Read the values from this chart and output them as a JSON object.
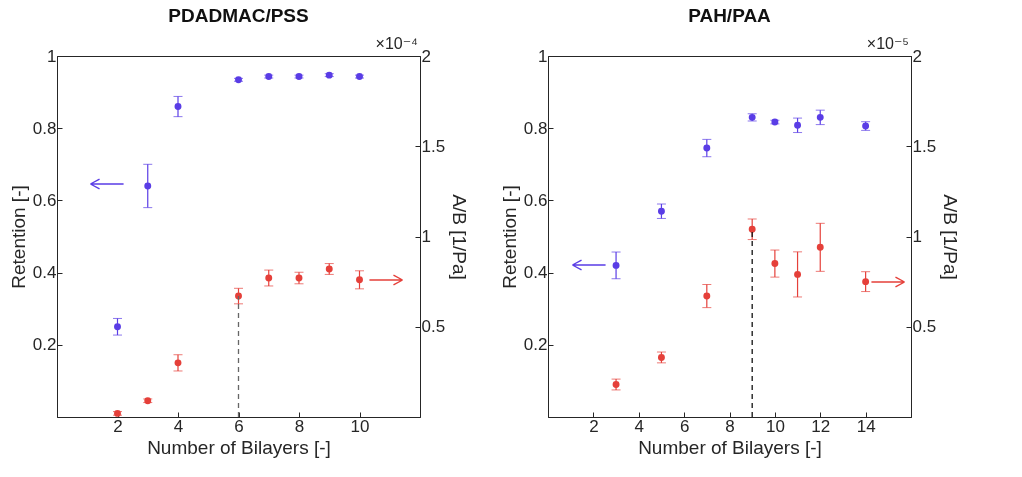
{
  "chart_data": [
    {
      "type": "scatter",
      "title": "PDADMAC/PSS",
      "xlabel": "Number of Bilayers [-]",
      "ylabel": "Retention [-]",
      "y2label": "A/B [1/Pa]",
      "marker": "circle",
      "xlim": [
        0,
        12
      ],
      "xticks": [
        2,
        4,
        6,
        8,
        10
      ],
      "ylim": [
        0,
        1
      ],
      "yticks": [
        0.2,
        0.4,
        0.6,
        0.8,
        1
      ],
      "y2lim": [
        0,
        2
      ],
      "y2ticks": [
        0.5,
        1,
        1.5,
        2
      ],
      "annotations": [
        "×10⁻⁴"
      ],
      "series": [
        {
          "color": "#5a3de6",
          "x": [
            2,
            3,
            4,
            6,
            7,
            8,
            9,
            10
          ],
          "values": [
            0.25,
            0.64,
            0.86,
            0.934,
            0.943,
            0.943,
            0.947,
            0.943
          ],
          "errors": [
            0.023,
            0.06,
            0.028,
            0.004,
            0.004,
            0.004,
            0.004,
            0.004
          ]
        },
        {
          "color": "#e5403a",
          "axis": "y2",
          "x": [
            2,
            3,
            4,
            6,
            7,
            8,
            9,
            10
          ],
          "values": [
            0.02,
            0.09,
            0.3,
            0.67,
            0.77,
            0.77,
            0.82,
            0.76
          ],
          "errors": [
            0.01,
            0.01,
            0.045,
            0.043,
            0.044,
            0.032,
            0.03,
            0.05
          ]
        },
        {
          "type": "line",
          "color": "#666666",
          "line_style": "dashed",
          "marker": "none",
          "axis": "y2",
          "x": [
            6,
            6
          ],
          "values": [
            0,
            0.67
          ]
        }
      ]
    },
    {
      "type": "scatter",
      "title": "PAH/PAA",
      "xlabel": "Number of Bilayers [-]",
      "ylabel": "Retention [-]",
      "y2label": "A/B [1/Pa]",
      "marker": "circle",
      "xlim": [
        0,
        16
      ],
      "xticks": [
        2,
        4,
        6,
        8,
        10,
        12,
        14
      ],
      "ylim": [
        0,
        1
      ],
      "yticks": [
        0.2,
        0.4,
        0.6,
        0.8,
        1
      ],
      "y2lim": [
        0,
        2
      ],
      "y2ticks": [
        0.5,
        1,
        1.5,
        2
      ],
      "annotations": [
        "×10⁻⁵"
      ],
      "series": [
        {
          "color": "#5a3de6",
          "x": [
            3,
            5,
            7,
            9,
            10,
            11,
            12,
            14
          ],
          "values": [
            0.42,
            0.57,
            0.745,
            0.83,
            0.817,
            0.808,
            0.83,
            0.806
          ],
          "errors": [
            0.037,
            0.02,
            0.024,
            0.01,
            0.005,
            0.02,
            0.02,
            0.012
          ]
        },
        {
          "color": "#e5403a",
          "axis": "y2",
          "x": [
            3,
            5,
            7,
            9,
            10,
            11,
            12,
            14
          ],
          "values": [
            0.18,
            0.33,
            0.67,
            1.04,
            0.85,
            0.79,
            0.94,
            0.75
          ],
          "errors": [
            0.03,
            0.03,
            0.064,
            0.057,
            0.075,
            0.125,
            0.133,
            0.055
          ]
        },
        {
          "type": "line",
          "color": "#111111",
          "line_style": "dashed",
          "marker": "none",
          "axis": "y2",
          "x": [
            9,
            9
          ],
          "values": [
            0,
            1.04
          ]
        }
      ]
    }
  ]
}
